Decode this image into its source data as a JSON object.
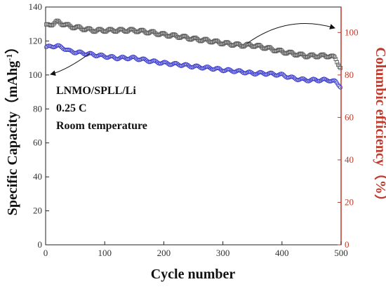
{
  "chart_data": {
    "type": "scatter",
    "xlabel": "Cycle number",
    "ylabel": "Specific Capacity（mAhg",
    "ylabel_sup": "-1",
    "ylabel_close": "）",
    "y2label": "Columbic efficiency（%）",
    "xlim": [
      0,
      500
    ],
    "ylim": [
      0,
      140
    ],
    "y2lim": [
      0,
      112
    ],
    "x_ticks": [
      "0",
      "100",
      "200",
      "300",
      "400",
      "500"
    ],
    "y_ticks": [
      "0",
      "20",
      "40",
      "60",
      "80",
      "100",
      "120",
      "140"
    ],
    "y2_ticks": [
      "0",
      "20",
      "40",
      "60",
      "80",
      "100"
    ],
    "annotations": [
      "LNMO/SPLL/Li",
      "0.25 C",
      "Room temperature"
    ],
    "colors": {
      "capacity": "#3a3acc",
      "efficiency": "#555555",
      "right_axis": "#c0392b"
    },
    "series": [
      {
        "axis": "left",
        "marker": "open-circle",
        "x": [
          0,
          10,
          20,
          30,
          40,
          60,
          80,
          100,
          120,
          150,
          180,
          200,
          230,
          250,
          280,
          300,
          330,
          350,
          370,
          400,
          420,
          440,
          460,
          480,
          490,
          500
        ],
        "values": [
          116,
          117,
          117,
          116,
          114,
          113,
          112,
          111,
          110,
          110,
          108,
          107,
          106,
          105,
          104,
          103,
          102,
          101,
          101,
          100,
          98,
          97,
          97,
          97,
          96,
          93
        ]
      },
      {
        "axis": "right",
        "marker": "open-square",
        "x": [
          0,
          10,
          20,
          30,
          40,
          60,
          80,
          100,
          120,
          150,
          180,
          200,
          230,
          250,
          280,
          300,
          330,
          350,
          370,
          400,
          420,
          440,
          460,
          480,
          490,
          500
        ],
        "values": [
          103,
          104,
          105,
          104,
          103,
          102,
          101,
          101,
          101,
          101,
          100,
          99,
          98,
          97,
          96,
          95,
          94,
          94,
          93,
          91,
          90,
          89,
          89,
          89,
          88,
          83
        ]
      }
    ]
  }
}
